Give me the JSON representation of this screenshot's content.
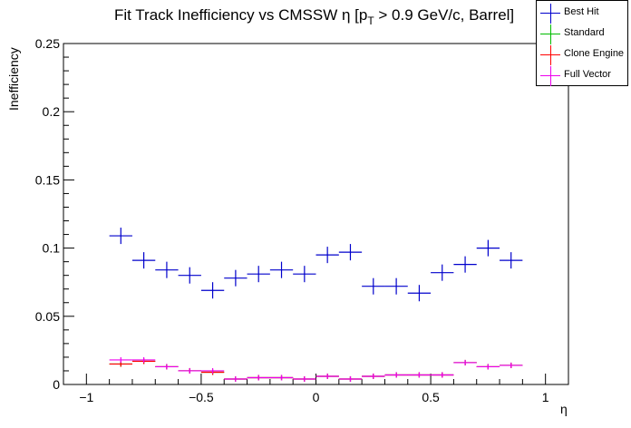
{
  "chart_data": {
    "type": "scatter",
    "style": "error-bar markers",
    "title": "Fit Track Inefficiency vs CMSSW η [p_T > 0.9 GeV/c, Barrel]",
    "title_parts": {
      "prefix": "Fit Track Inefficiency vs CMSSW η [p",
      "subscript": "T",
      "suffix": " > 0.9 GeV/c, Barrel]"
    },
    "xlabel": "η",
    "ylabel": "Inefficiency",
    "xlim": [
      -1.1,
      1.1
    ],
    "ylim": [
      0,
      0.25
    ],
    "xticks": [
      -1,
      -0.5,
      0,
      0.5,
      1
    ],
    "xtick_labels": [
      "−1",
      "−0.5",
      "0",
      "0.5",
      "1"
    ],
    "yticks": [
      0,
      0.05,
      0.1,
      0.15,
      0.2,
      0.25
    ],
    "ytick_labels": [
      "0",
      "0.05",
      "0.1",
      "0.15",
      "0.2",
      "0.25"
    ],
    "bin_half_width": 0.05,
    "x": [
      -0.85,
      -0.75,
      -0.65,
      -0.55,
      -0.45,
      -0.35,
      -0.25,
      -0.15,
      -0.05,
      0.05,
      0.15,
      0.25,
      0.35,
      0.45,
      0.55,
      0.65,
      0.75,
      0.85
    ],
    "legend_position": "top-right",
    "grid": false,
    "series": [
      {
        "name": "Best Hit",
        "color": "#0000cc",
        "values": [
          0.109,
          0.091,
          0.084,
          0.08,
          0.069,
          0.078,
          0.081,
          0.084,
          0.081,
          0.095,
          0.097,
          0.072,
          0.072,
          0.067,
          0.082,
          0.088,
          0.1,
          0.091
        ],
        "yerr": 0.006
      },
      {
        "name": "Standard",
        "color": "#00bb00",
        "values": [
          0.015,
          0.017,
          0.013,
          0.01,
          0.009,
          0.004,
          0.005,
          0.005,
          0.004,
          0.006,
          0.004,
          0.006,
          0.007,
          0.007,
          0.007,
          0.016,
          0.013,
          0.014
        ],
        "yerr": 0.002
      },
      {
        "name": "Clone Engine",
        "color": "#ff0000",
        "values": [
          0.015,
          0.017,
          0.013,
          0.01,
          0.009,
          0.004,
          0.005,
          0.005,
          0.004,
          0.006,
          0.004,
          0.006,
          0.007,
          0.007,
          0.007,
          0.016,
          0.013,
          0.014
        ],
        "yerr": 0.002
      },
      {
        "name": "Full Vector",
        "color": "#ee00ee",
        "values": [
          0.018,
          0.018,
          0.013,
          0.01,
          0.01,
          0.004,
          0.005,
          0.005,
          0.004,
          0.006,
          0.004,
          0.006,
          0.007,
          0.007,
          0.007,
          0.016,
          0.013,
          0.014
        ],
        "yerr": 0.002
      }
    ]
  }
}
